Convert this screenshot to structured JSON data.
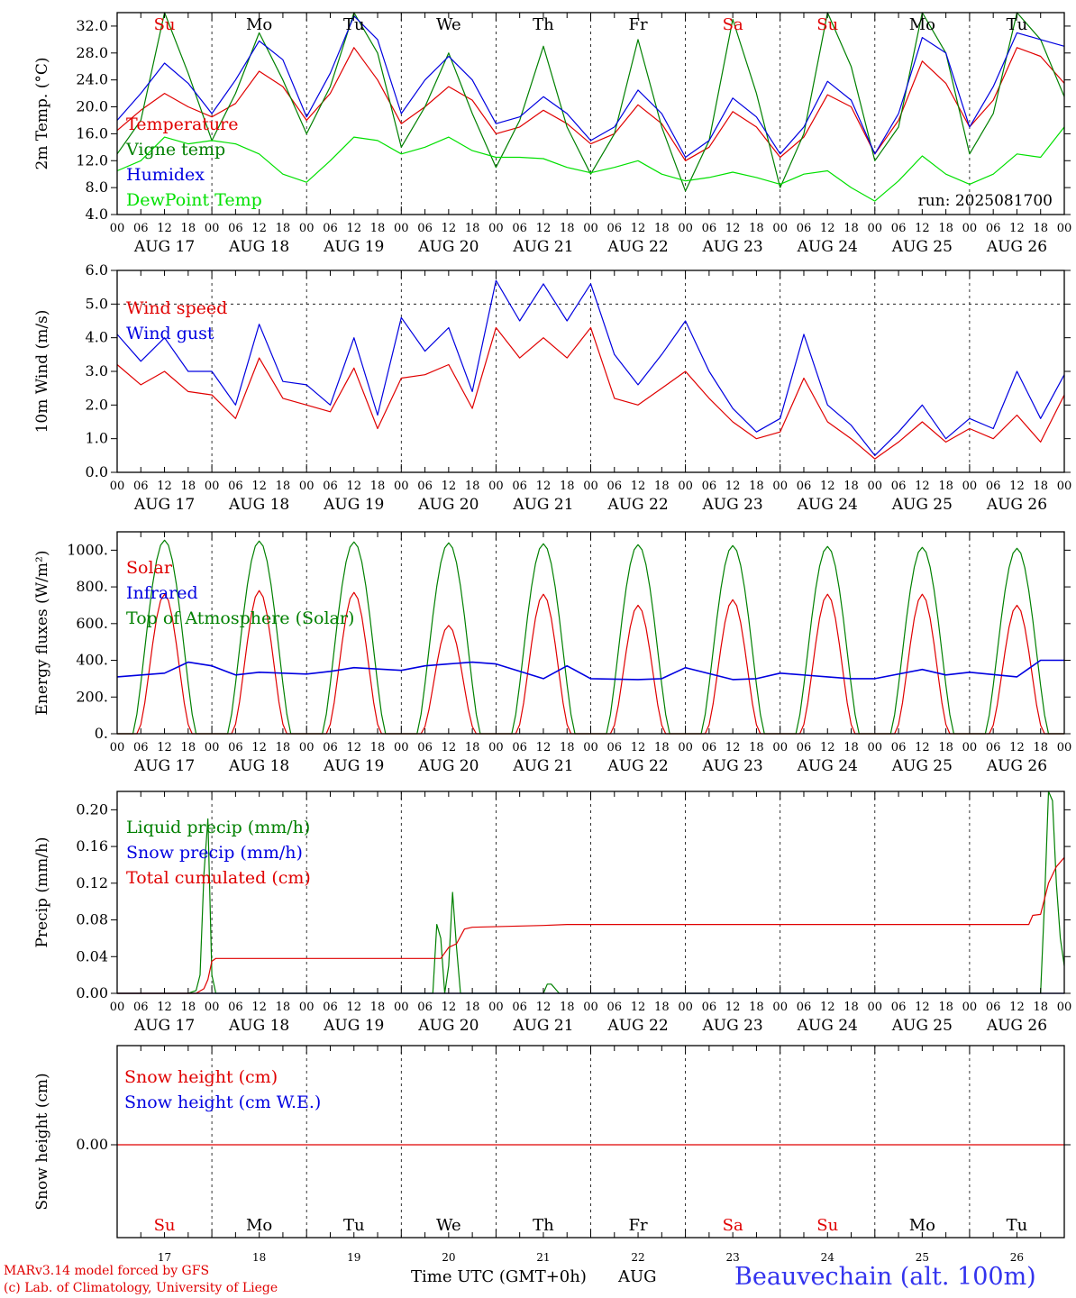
{
  "chart_data": [
    {
      "id": "temp",
      "type": "line",
      "ylabel": "2m Temp. (°C)",
      "ylim": [
        4,
        34
      ],
      "yticks": [
        "4.0",
        "8.0",
        "12.0",
        "16.0",
        "20.0",
        "24.0",
        "28.0",
        "32.0"
      ],
      "day_labels": [
        "Su",
        "Mo",
        "Tu",
        "We",
        "Th",
        "Fr",
        "Sa",
        "Su",
        "Mo",
        "Tu"
      ],
      "day_label_colors": [
        "#e00000",
        "#000000",
        "#000000",
        "#000000",
        "#000000",
        "#000000",
        "#e00000",
        "#e00000",
        "#000000",
        "#000000"
      ],
      "run_label": "run: 2025081700",
      "x_hours": [
        0,
        6,
        12,
        18,
        24,
        30,
        36,
        42,
        48,
        54,
        60,
        66,
        72,
        78,
        84,
        90,
        96,
        102,
        108,
        114,
        120,
        126,
        132,
        138,
        144,
        150,
        156,
        162,
        168,
        174,
        180,
        186,
        192,
        198,
        204,
        210,
        216,
        222,
        228,
        234,
        240
      ],
      "series": [
        {
          "name": "Temperature",
          "color": "#e00000",
          "values": [
            16.5,
            19.5,
            22,
            20,
            18.5,
            20.5,
            25.3,
            23,
            18,
            22,
            28.8,
            24,
            17.5,
            20,
            23,
            21,
            16,
            17,
            19.5,
            17.5,
            14.5,
            16,
            20.3,
            17.5,
            12,
            14,
            19.3,
            17,
            12.5,
            15.5,
            21.8,
            20,
            13,
            18,
            26.8,
            23.5,
            17,
            21,
            28.8,
            27.5,
            23.5
          ]
        },
        {
          "name": "Vigne temp",
          "color": "#008000",
          "values": [
            13,
            18,
            34,
            25,
            15,
            22,
            31,
            24,
            16,
            23,
            35,
            28,
            14,
            20,
            28,
            19,
            11,
            18,
            29,
            17,
            10,
            16,
            30,
            17,
            7.5,
            15,
            33,
            22,
            8,
            16,
            34,
            26,
            12,
            17,
            34,
            28,
            13,
            19,
            35,
            30,
            21.5
          ]
        },
        {
          "name": "Humidex",
          "color": "#0000e0",
          "values": [
            18,
            22,
            26.5,
            23.5,
            19,
            24,
            29.8,
            27,
            18.5,
            25,
            33.5,
            30,
            19,
            24,
            27.5,
            24,
            17.5,
            18.5,
            21.5,
            19,
            15,
            17,
            22.5,
            19,
            12.5,
            15,
            21.3,
            18.5,
            13,
            17,
            23.8,
            21,
            13,
            19,
            30.3,
            28,
            17,
            23,
            31,
            30,
            29
          ]
        },
        {
          "name": "DewPoint Temp",
          "color": "#00e000",
          "values": [
            10.5,
            12,
            15.5,
            14.5,
            15,
            14.5,
            13,
            10,
            8.8,
            12,
            15.5,
            15,
            13,
            14,
            15.5,
            13.5,
            12.5,
            12.5,
            12.3,
            11,
            10.2,
            11,
            12,
            10,
            9,
            9.5,
            10.3,
            9.5,
            8.5,
            10,
            10.5,
            8,
            6,
            9,
            12.7,
            10,
            8.5,
            10,
            13,
            12.5,
            17
          ]
        }
      ]
    },
    {
      "id": "wind",
      "type": "line",
      "ylabel": "10m Wind (m/s)",
      "ylim": [
        0,
        6
      ],
      "yticks": [
        "0.0",
        "1.0",
        "2.0",
        "3.0",
        "4.0",
        "5.0",
        "6.0"
      ],
      "dashed_level": 5.0,
      "x_hours": [
        0,
        6,
        12,
        18,
        24,
        30,
        36,
        42,
        48,
        54,
        60,
        66,
        72,
        78,
        84,
        90,
        96,
        102,
        108,
        114,
        120,
        126,
        132,
        138,
        144,
        150,
        156,
        162,
        168,
        174,
        180,
        186,
        192,
        198,
        204,
        210,
        216,
        222,
        228,
        234,
        240
      ],
      "series": [
        {
          "name": "Wind speed",
          "color": "#e00000",
          "values": [
            3.2,
            2.6,
            3.0,
            2.4,
            2.3,
            1.6,
            3.4,
            2.2,
            2.0,
            1.8,
            3.1,
            1.3,
            2.8,
            2.9,
            3.2,
            1.9,
            4.3,
            3.4,
            4.0,
            3.4,
            4.3,
            2.2,
            2.0,
            2.5,
            3.0,
            2.2,
            1.5,
            1.0,
            1.2,
            2.8,
            1.5,
            1.0,
            0.4,
            0.9,
            1.5,
            0.9,
            1.3,
            1.0,
            1.7,
            0.9,
            2.3
          ]
        },
        {
          "name": "Wind gust",
          "color": "#0000e0",
          "values": [
            4.1,
            3.3,
            4.0,
            3.0,
            3.0,
            2.0,
            4.4,
            2.7,
            2.6,
            2.0,
            4.0,
            1.7,
            4.6,
            3.6,
            4.3,
            2.4,
            5.7,
            4.5,
            5.6,
            4.5,
            5.6,
            3.5,
            2.6,
            3.5,
            4.5,
            3.0,
            1.9,
            1.2,
            1.6,
            4.1,
            2.0,
            1.4,
            0.5,
            1.2,
            2.0,
            1.0,
            1.6,
            1.3,
            3.0,
            1.6,
            2.9
          ]
        }
      ]
    },
    {
      "id": "energy",
      "type": "line",
      "ylabel": "Energy fluxes (W/m²)",
      "ylim": [
        0,
        1100
      ],
      "yticks": [
        "0.",
        "200.",
        "400.",
        "600.",
        "800.",
        "1000."
      ],
      "series": [
        {
          "name": "Solar",
          "color": "#e00000",
          "peaks": [
            760,
            780,
            770,
            590,
            760,
            700,
            730,
            760,
            760,
            700
          ]
        },
        {
          "name": "Infrared",
          "color": "#0000e0",
          "x_hours": [
            0,
            12,
            18,
            24,
            30,
            36,
            48,
            54,
            60,
            72,
            78,
            84,
            90,
            96,
            108,
            114,
            120,
            132,
            138,
            144,
            156,
            162,
            168,
            180,
            186,
            192,
            204,
            210,
            216,
            228,
            234,
            240
          ],
          "values": [
            310,
            330,
            390,
            370,
            320,
            335,
            325,
            340,
            360,
            345,
            370,
            380,
            390,
            380,
            300,
            370,
            300,
            295,
            300,
            360,
            295,
            300,
            330,
            310,
            300,
            300,
            350,
            320,
            335,
            310,
            400,
            400
          ]
        },
        {
          "name": "Top of Atmosphere (Solar)",
          "color": "#008000",
          "peaks": [
            1055,
            1050,
            1045,
            1040,
            1035,
            1030,
            1025,
            1020,
            1015,
            1010
          ]
        }
      ]
    },
    {
      "id": "precip",
      "type": "line",
      "ylabel": "Precip (mm/h)",
      "ylim": [
        0,
        0.22
      ],
      "yticks": [
        "0.00",
        "0.04",
        "0.08",
        "0.12",
        "0.16",
        "0.20"
      ],
      "series": [
        {
          "name": "Liquid precip (mm/h)",
          "color": "#008000",
          "x_hours": [
            0,
            18,
            20,
            21,
            22,
            23,
            24,
            25,
            26,
            80,
            81,
            82,
            83,
            84,
            85,
            86,
            87,
            88,
            89,
            108,
            109,
            110,
            111,
            112,
            234,
            235,
            236,
            237,
            238,
            239,
            240
          ],
          "values": [
            0,
            0,
            0.003,
            0.02,
            0.13,
            0.19,
            0.02,
            0,
            0,
            0,
            0.075,
            0.06,
            0,
            0.03,
            0.11,
            0.05,
            0,
            0,
            0,
            0,
            0.01,
            0.01,
            0.005,
            0,
            0,
            0.1,
            0.22,
            0.21,
            0.12,
            0.06,
            0.03
          ]
        },
        {
          "name": "Snow precip (mm/h)",
          "color": "#0000e0",
          "x_hours": [
            0,
            240
          ],
          "values": [
            0,
            0
          ]
        },
        {
          "name": "Total cumulated (cm)",
          "color": "#e00000",
          "x_hours": [
            0,
            20,
            22,
            23,
            24,
            25,
            82,
            84,
            86,
            88,
            90,
            108,
            114,
            120,
            228,
            231,
            232,
            234,
            236,
            238,
            240
          ],
          "values": [
            0,
            0,
            0.005,
            0.015,
            0.035,
            0.038,
            0.038,
            0.05,
            0.054,
            0.07,
            0.072,
            0.074,
            0.075,
            0.075,
            0.075,
            0.075,
            0.085,
            0.086,
            0.12,
            0.138,
            0.148
          ]
        }
      ]
    },
    {
      "id": "snow",
      "type": "line",
      "ylabel": "Snow height (cm)",
      "yticks": [
        "0.00"
      ],
      "day_labels": [
        "Su",
        "Mo",
        "Tu",
        "We",
        "Th",
        "Fr",
        "Sa",
        "Su",
        "Mo",
        "Tu"
      ],
      "day_label_colors": [
        "#e00000",
        "#000000",
        "#000000",
        "#000000",
        "#000000",
        "#000000",
        "#e00000",
        "#e00000",
        "#000000",
        "#000000"
      ],
      "day_numbers": [
        "17",
        "18",
        "19",
        "20",
        "21",
        "22",
        "23",
        "24",
        "25",
        "26"
      ],
      "series": [
        {
          "name": "Snow height (cm)",
          "color": "#e00000",
          "values": [
            0,
            0
          ]
        },
        {
          "name": "Snow height (cm W.E.)",
          "color": "#0000e0",
          "values": [
            0,
            0
          ]
        }
      ]
    }
  ],
  "x_axis": {
    "hour_ticks": [
      "00",
      "06",
      "12",
      "18"
    ],
    "final_tick": "00",
    "dates": [
      "AUG 17",
      "AUG 18",
      "AUG 19",
      "AUG 20",
      "AUG 21",
      "AUG 22",
      "AUG 23",
      "AUG 24",
      "AUG 25",
      "AUG 26"
    ],
    "title": "Time UTC (GMT+0h)",
    "month": "AUG"
  },
  "footer": {
    "model": "MARv3.14 model forced by GFS",
    "credit": "(c) Lab. of Climatology, University of Liege",
    "station": "Beauvechain (alt. 100m)"
  }
}
